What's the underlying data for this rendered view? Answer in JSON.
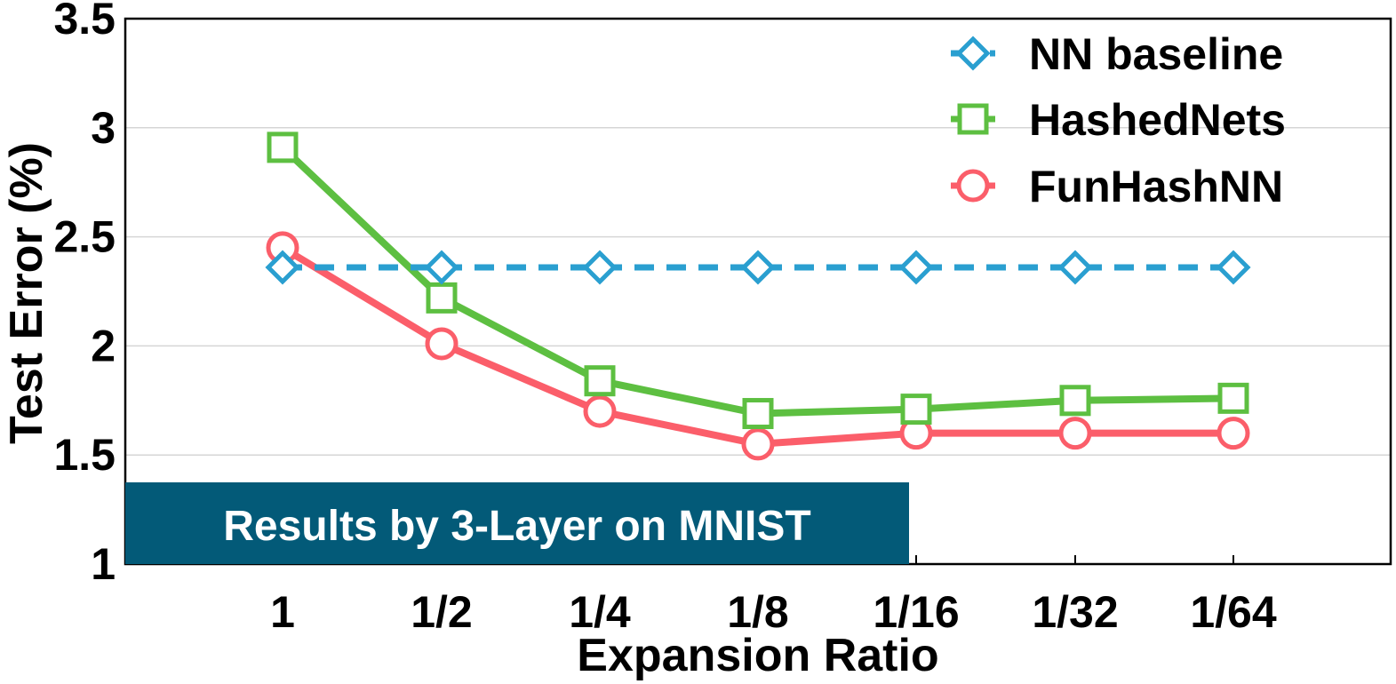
{
  "chart_data": {
    "type": "line",
    "xlabel": "Expansion Ratio",
    "ylabel": "Test Error (%)",
    "categories": [
      "1",
      "1/2",
      "1/4",
      "1/8",
      "1/16",
      "1/32",
      "1/64"
    ],
    "ylim": [
      1,
      3.5
    ],
    "yticks": [
      "1",
      "1.5",
      "2",
      "2.5",
      "3",
      "3.5"
    ],
    "grid": "horizontal",
    "legend_position": "top-right",
    "annotation": "Results by 3-Layer on MNIST",
    "annotation_color": "#035a78",
    "series": [
      {
        "name": "NN baseline",
        "values": [
          2.36,
          2.36,
          2.36,
          2.36,
          2.36,
          2.36,
          2.36
        ],
        "color": "#2a9fd0",
        "marker": "diamond",
        "line": "dashed"
      },
      {
        "name": "HashedNets",
        "values": [
          2.91,
          2.22,
          1.84,
          1.69,
          1.71,
          1.75,
          1.76
        ],
        "color": "#5dbf41",
        "marker": "square",
        "line": "solid"
      },
      {
        "name": "FunHashNN",
        "values": [
          2.45,
          2.01,
          1.7,
          1.55,
          1.6,
          1.6,
          1.6
        ],
        "color": "#fb5e6a",
        "marker": "circle",
        "line": "solid"
      }
    ]
  }
}
